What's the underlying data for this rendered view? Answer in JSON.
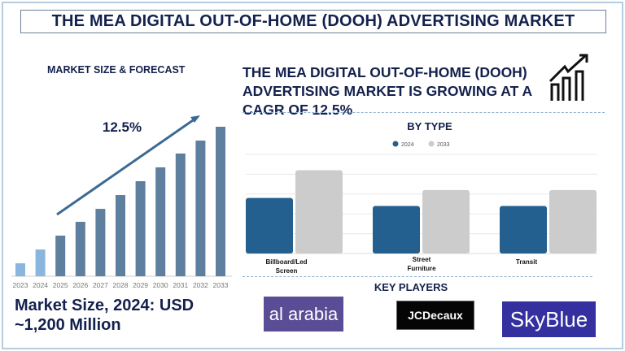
{
  "header": {
    "title": "THE MEA DIGITAL OUT-OF-HOME (DOOH) ADVERTISING MARKET"
  },
  "left": {
    "section_title": "MARKET SIZE & FORECAST",
    "cagr_label": "12.5%",
    "market_size_line1": "Market Size, 2024: USD",
    "market_size_line2": "~1,200 Million"
  },
  "right": {
    "headline": "THE MEA DIGITAL OUT-OF-HOME (DOOH) ADVERTISING MARKET IS GROWING AT A CAGR OF 12.5%",
    "growth_icon": "growth-chart-icon",
    "key_players_title": "KEY PLAYERS",
    "key_players": [
      "al arabia",
      "JCDecaux",
      "SkyBlue"
    ]
  },
  "chart_data": [
    {
      "type": "bar",
      "title": "",
      "categories": [
        "2023",
        "2024",
        "2025",
        "2026",
        "2027",
        "2028",
        "2029",
        "2030",
        "2031",
        "2032",
        "2033"
      ],
      "values": [
        580,
        1200,
        1820,
        2440,
        3020,
        3640,
        4260,
        4880,
        5500,
        6080,
        6700
      ],
      "colors": {
        "historical": "#8ab6de",
        "forecast": "#5f7f9e"
      },
      "ylim": [
        0,
        7000
      ],
      "grid": false,
      "annotation": "12.5%"
    },
    {
      "type": "bar",
      "title": "BY TYPE",
      "categories": [
        "Billboard/Led Screen",
        "Street Furniture",
        "Transit"
      ],
      "series": [
        {
          "name": "2024",
          "values": [
            2.8,
            2.4,
            2.4
          ],
          "color": "#24608f"
        },
        {
          "name": "2033",
          "values": [
            4.2,
            3.2,
            3.2
          ],
          "color": "#cccccc"
        }
      ],
      "ylim": [
        0,
        5
      ],
      "grid": true,
      "legend": "top"
    }
  ]
}
